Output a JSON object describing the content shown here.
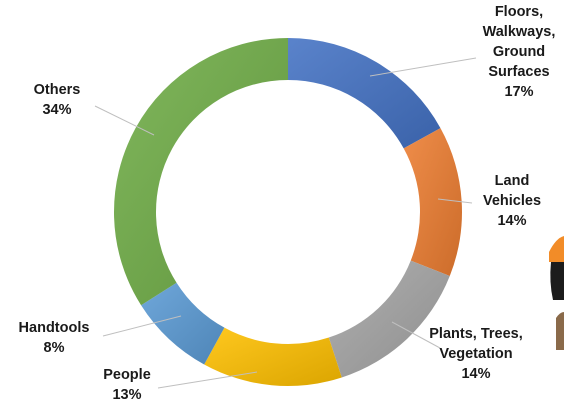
{
  "chart_data": {
    "type": "pie",
    "style": "donut",
    "title": "",
    "legend": "none",
    "slices": [
      {
        "name": "Floors, Walkways, Ground Surfaces",
        "value": 17,
        "label": "17%",
        "color": "#4472C4",
        "name_lines": [
          "Floors,",
          "Walkways,",
          "Ground",
          "Surfaces"
        ]
      },
      {
        "name": "Land Vehicles",
        "value": 14,
        "label": "14%",
        "color": "#ED7D31",
        "name_lines": [
          "Land",
          "Vehicles"
        ]
      },
      {
        "name": "Plants, Trees, Vegetation",
        "value": 14,
        "label": "14%",
        "color": "#A5A5A5",
        "name_lines": [
          "Plants, Trees,",
          "Vegetation"
        ]
      },
      {
        "name": "People",
        "value": 13,
        "label": "13%",
        "color": "#FFC000",
        "name_lines": [
          "People"
        ]
      },
      {
        "name": "Handtools",
        "value": 8,
        "label": "8%",
        "color": "#5B9BD5",
        "name_lines": [
          "Handtools"
        ]
      },
      {
        "name": "Others",
        "value": 34,
        "label": "34%",
        "color": "#70AD47",
        "name_lines": [
          "Others"
        ]
      }
    ]
  }
}
